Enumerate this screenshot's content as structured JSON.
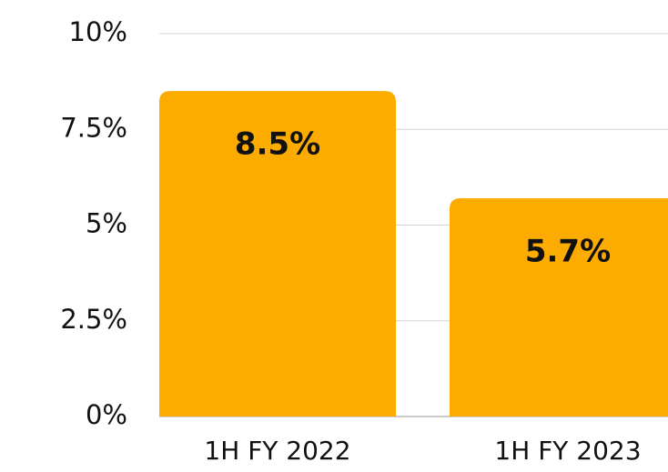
{
  "chart_data": {
    "type": "bar",
    "categories": [
      "1H FY 2022",
      "1H FY 2023"
    ],
    "values": [
      8.5,
      5.7
    ],
    "value_labels": [
      "8.5%",
      "5.7%"
    ],
    "color": "#fcab00",
    "ylim": [
      0,
      10
    ],
    "yticks": [
      {
        "value": 0,
        "label": "0%"
      },
      {
        "value": 2.5,
        "label": "2.5%"
      },
      {
        "value": 5,
        "label": "5%"
      },
      {
        "value": 7.5,
        "label": "7.5%"
      },
      {
        "value": 10,
        "label": "10%"
      }
    ],
    "grid": true
  }
}
